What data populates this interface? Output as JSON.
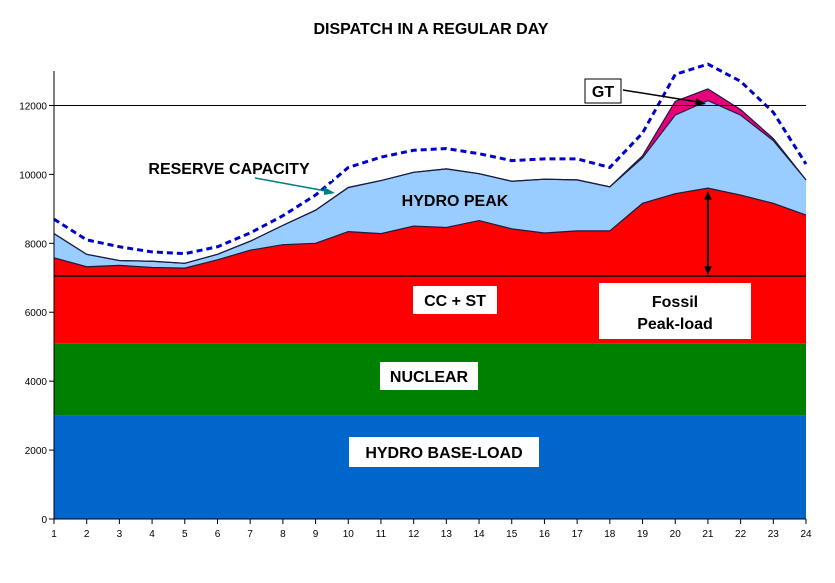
{
  "chart_data": {
    "type": "area",
    "title": "DISPATCH IN A REGULAR DAY",
    "x": [
      1,
      2,
      3,
      4,
      5,
      6,
      7,
      8,
      9,
      10,
      11,
      12,
      13,
      14,
      15,
      16,
      17,
      18,
      19,
      20,
      21,
      22,
      23,
      24
    ],
    "ylim": [
      0,
      13000
    ],
    "yticks": [
      0,
      2000,
      4000,
      6000,
      8000,
      10000,
      12000
    ],
    "series": [
      {
        "name": "HYDRO BASE-LOAD",
        "color": "#0066cc",
        "values": [
          3000,
          3000,
          3000,
          3000,
          3000,
          3000,
          3000,
          3000,
          3000,
          3000,
          3000,
          3000,
          3000,
          3000,
          3000,
          3000,
          3000,
          3000,
          3000,
          3000,
          3000,
          3000,
          3000,
          3000
        ]
      },
      {
        "name": "NUCLEAR",
        "color": "#008000",
        "values": [
          2100,
          2100,
          2100,
          2100,
          2100,
          2100,
          2100,
          2100,
          2100,
          2100,
          2100,
          2100,
          2100,
          2100,
          2100,
          2100,
          2100,
          2100,
          2100,
          2100,
          2100,
          2100,
          2100,
          2100
        ]
      },
      {
        "name": "CC + ST",
        "color": "#ff0000",
        "values": [
          2480,
          2220,
          2260,
          2200,
          2180,
          2420,
          2700,
          2860,
          2900,
          3240,
          3180,
          3400,
          3360,
          3560,
          3320,
          3200,
          3260,
          3260,
          4060,
          4340,
          4500,
          4300,
          4060,
          3720
        ]
      },
      {
        "name": "HYDRO PEAK",
        "color": "#99ccff",
        "values": [
          700,
          360,
          140,
          180,
          140,
          160,
          260,
          560,
          960,
          1280,
          1540,
          1560,
          1700,
          1360,
          1380,
          1560,
          1480,
          1280,
          1320,
          2280,
          2540,
          2320,
          1820,
          1020
        ]
      },
      {
        "name": "GT",
        "color": "#e8007a",
        "values": [
          0,
          0,
          0,
          0,
          0,
          0,
          0,
          0,
          0,
          0,
          0,
          0,
          0,
          0,
          0,
          0,
          0,
          0,
          60,
          400,
          340,
          160,
          60,
          0
        ]
      }
    ],
    "reserve_capacity": [
      8700,
      8100,
      7900,
      7750,
      7700,
      7900,
      8300,
      8800,
      9400,
      10200,
      10500,
      10700,
      10750,
      10600,
      10400,
      10450,
      10450,
      10200,
      11200,
      12900,
      13200,
      12700,
      11800,
      10300
    ],
    "reference_lines": [
      12000,
      7050
    ],
    "annotations": {
      "gt": "GT",
      "reserve": "RESERVE CAPACITY",
      "fossil_line1": "Fossil",
      "fossil_line2": "Peak-load"
    }
  }
}
